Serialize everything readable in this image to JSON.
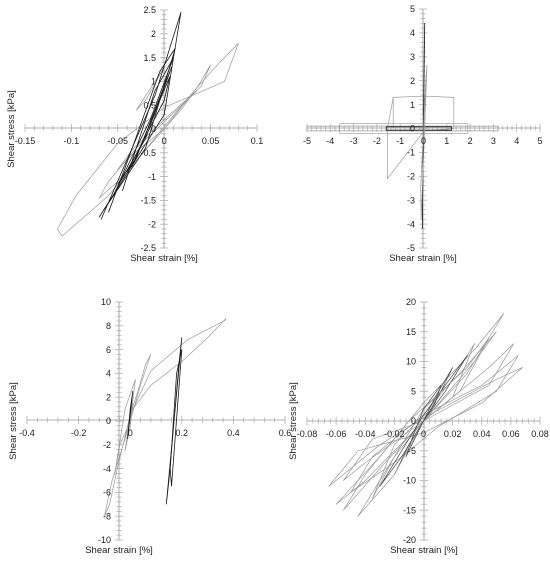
{
  "chart_data": [
    {
      "type": "line",
      "xlabel": "Shear strain [%]",
      "ylabel": "Shear stress [kPa]",
      "xlim": [
        -0.15,
        0.1
      ],
      "ylim": [
        -2.5,
        2.5
      ],
      "x_ticks": [
        "-0.15",
        "-0.1",
        "-0.05",
        "0",
        "0.05",
        "0.1"
      ],
      "y_ticks": [
        "-2.5",
        "-2",
        "-1.5",
        "-1",
        "-0.5",
        "0",
        "0.5",
        "1",
        "1.5",
        "2",
        "2.5"
      ],
      "grid": false,
      "series": [
        {
          "color": "#9a9a9a",
          "x": [
            0.0,
            0.03,
            0.055,
            0.08,
            0.065,
            0.0,
            -0.05,
            -0.095,
            -0.115,
            -0.11,
            -0.06,
            0.0
          ],
          "y": [
            0.05,
            0.75,
            1.3,
            1.8,
            1.0,
            0.45,
            -0.3,
            -1.4,
            -2.1,
            -2.25,
            -1.4,
            0.05
          ]
        },
        {
          "color": "#9a9a9a",
          "x": [
            0.0,
            0.02,
            0.038,
            0.05,
            0.04,
            0.0,
            -0.03,
            -0.06,
            -0.07,
            -0.05,
            0.0
          ],
          "y": [
            0.0,
            0.45,
            0.95,
            1.35,
            0.9,
            0.15,
            -0.4,
            -1.1,
            -1.45,
            -1.1,
            0.0
          ]
        },
        {
          "color": "#9a9a9a",
          "x": [
            0.0,
            0.02,
            0.035,
            0.02,
            0.0,
            -0.035,
            -0.05,
            -0.035,
            0.0
          ],
          "y": [
            0.0,
            0.5,
            0.8,
            0.55,
            0.2,
            -0.45,
            -0.85,
            -0.55,
            0.0
          ]
        },
        {
          "color": "#9a9a9a",
          "x": [
            -0.02,
            0.0,
            -0.01,
            -0.03,
            -0.02
          ],
          "y": [
            0.6,
            1.3,
            1.0,
            0.4,
            0.6
          ]
        },
        {
          "color": "#1a1a1a",
          "x": [
            -0.07,
            0.0,
            0.018,
            -0.01,
            -0.068
          ],
          "y": [
            -1.85,
            0.3,
            2.45,
            0.7,
            -1.9
          ]
        },
        {
          "color": "#1a1a1a",
          "x": [
            -0.065,
            -0.02,
            0.012,
            -0.005,
            -0.04,
            -0.06
          ],
          "y": [
            -1.7,
            -0.4,
            1.7,
            1.2,
            -0.7,
            -1.75
          ]
        },
        {
          "color": "#1a1a1a",
          "x": [
            -0.055,
            -0.015,
            0.01,
            -0.01,
            -0.045
          ],
          "y": [
            -1.4,
            0.2,
            1.5,
            0.8,
            -1.3
          ]
        },
        {
          "color": "#1a1a1a",
          "x": [
            -0.05,
            -0.02,
            0.008,
            0.0,
            -0.03,
            -0.05
          ],
          "y": [
            -1.2,
            -0.2,
            1.3,
            0.9,
            -0.6,
            -1.15
          ]
        },
        {
          "color": "#1a1a1a",
          "x": [
            -0.04,
            0.0,
            0.006,
            -0.035
          ],
          "y": [
            -0.9,
            0.6,
            1.1,
            -0.8
          ]
        }
      ]
    },
    {
      "type": "line",
      "xlabel": "Shear strain [%]",
      "ylabel": "",
      "xlim": [
        -5,
        5
      ],
      "ylim": [
        -5,
        5
      ],
      "x_ticks": [
        "-5",
        "-4",
        "-3",
        "-2",
        "-1",
        "0",
        "1",
        "2",
        "3",
        "4",
        "5"
      ],
      "y_ticks": [
        "-5",
        "-4",
        "-3",
        "-2",
        "-1",
        "0",
        "1",
        "2",
        "3",
        "4",
        "5"
      ],
      "grid": false,
      "series": [
        {
          "color": "#9a9a9a",
          "x": [
            0.0,
            0.05,
            1.3,
            1.3,
            0.05,
            -0.05,
            -1.55,
            -1.55,
            -1.3,
            0.0
          ],
          "y": [
            0.0,
            1.35,
            1.3,
            0.0,
            -0.1,
            -0.2,
            -2.1,
            0.0,
            1.3,
            1.35
          ]
        },
        {
          "color": "#9a9a9a",
          "x": [
            -1.3,
            -1.3
          ],
          "y": [
            1.3,
            0.0
          ]
        },
        {
          "color": "#9a9a9a",
          "x": [
            -5.0,
            3.2,
            3.2,
            -5.0,
            -5.0
          ],
          "y": [
            0.1,
            0.1,
            -0.1,
            -0.1,
            0.1
          ]
        },
        {
          "color": "#9a9a9a",
          "x": [
            -3.6,
            1.9,
            1.9,
            -3.6,
            -3.6
          ],
          "y": [
            0.2,
            0.2,
            -0.2,
            -0.2,
            0.2
          ]
        },
        {
          "color": "#1a1a1a",
          "x": [
            -1.6,
            1.2,
            1.2,
            -1.6,
            -1.6
          ],
          "y": [
            0.07,
            0.07,
            -0.07,
            -0.07,
            0.07
          ]
        },
        {
          "color": "#1a1a1a",
          "x": [
            -0.05,
            0.05,
            0.03,
            -0.04,
            -0.05
          ],
          "y": [
            -4.2,
            4.4,
            3.0,
            -3.0,
            -4.2
          ]
        },
        {
          "color": "#9a9a9a",
          "x": [
            -0.1,
            0.15,
            0.1,
            -0.12,
            -0.1
          ],
          "y": [
            -3.8,
            2.65,
            2.0,
            -2.5,
            -3.8
          ]
        }
      ]
    },
    {
      "type": "line",
      "xlabel": "Shear strain [%]",
      "ylabel": "Shear stress [kPa]",
      "xlim": [
        -0.4,
        0.6
      ],
      "ylim": [
        -10,
        10
      ],
      "x_ticks": [
        "-0.4",
        "-0.2",
        "0",
        "0.2",
        "0.4",
        "0.6"
      ],
      "y_ticks": [
        "-10",
        "-8",
        "-6",
        "-4",
        "-2",
        "0",
        "2",
        "4",
        "6",
        "8",
        "10"
      ],
      "grid": false,
      "series": [
        {
          "color": "#9a9a9a",
          "x": [
            0.0,
            0.08,
            0.22,
            0.37,
            0.37,
            0.3,
            0.2,
            0.08,
            0.01,
            0.0
          ],
          "y": [
            0.5,
            4.2,
            6.8,
            8.5,
            8.6,
            7.0,
            5.0,
            3.0,
            1.0,
            0.5
          ]
        },
        {
          "color": "#9a9a9a",
          "x": [
            0.0,
            0.03,
            0.06,
            0.08,
            0.04,
            -0.02,
            -0.07,
            -0.1,
            -0.08,
            -0.05,
            0.0
          ],
          "y": [
            0.5,
            2.5,
            4.8,
            5.6,
            3.0,
            -1.5,
            -5.0,
            -8.0,
            -7.0,
            -4.0,
            0.5
          ]
        },
        {
          "color": "#9a9a9a",
          "x": [
            0.0,
            0.02,
            -0.02,
            -0.06,
            -0.04,
            0.0
          ],
          "y": [
            0.0,
            3.5,
            1.0,
            -4.5,
            -2.0,
            0.0
          ]
        },
        {
          "color": "#9a9a9a",
          "x": [
            0.0,
            0.01,
            0.0,
            -0.02,
            -0.01,
            0.0
          ],
          "y": [
            -0.5,
            1.5,
            0.5,
            -2.5,
            -1.5,
            -0.5
          ]
        },
        {
          "color": "#1a1a1a",
          "x": [
            0.14,
            0.2,
            0.19,
            0.15,
            0.14
          ],
          "y": [
            -7.0,
            7.0,
            5.0,
            -5.0,
            -7.0
          ]
        },
        {
          "color": "#1a1a1a",
          "x": [
            0.16,
            0.2,
            0.18,
            0.155,
            0.16
          ],
          "y": [
            -5.5,
            6.0,
            4.0,
            -4.0,
            -5.5
          ]
        },
        {
          "color": "#1a1a1a",
          "x": [
            -0.01,
            0.01,
            0.0,
            -0.01
          ],
          "y": [
            -1.5,
            2.5,
            1.0,
            -1.5
          ]
        }
      ]
    },
    {
      "type": "line",
      "xlabel": "Shear strain [%]",
      "ylabel": "Shear stress [kPa]",
      "xlim": [
        -0.08,
        0.08
      ],
      "ylim": [
        -20,
        20
      ],
      "x_ticks": [
        "-0.08",
        "-0.06",
        "-0.04",
        "-0.02",
        "0",
        "0.02",
        "0.04",
        "0.06",
        "0.08"
      ],
      "y_ticks": [
        "-20",
        "-15",
        "-10",
        "-5",
        "0",
        "5",
        "10",
        "15",
        "20"
      ],
      "grid": false,
      "series": [
        {
          "color": "#9a9a9a",
          "x": [
            0.0,
            0.03,
            0.055,
            0.035,
            0.0,
            -0.03,
            -0.06,
            -0.04,
            0.0
          ],
          "y": [
            0.0,
            8.0,
            18.0,
            12.0,
            3.0,
            -6.0,
            -14.0,
            -10.0,
            0.0
          ]
        },
        {
          "color": "#9a9a9a",
          "x": [
            0.0,
            0.04,
            0.065,
            0.05,
            0.01,
            -0.02,
            -0.05,
            -0.035,
            0.0
          ],
          "y": [
            1.0,
            6.0,
            11.0,
            5.0,
            -1.0,
            -7.0,
            -12.0,
            -6.0,
            1.0
          ]
        },
        {
          "color": "#9a9a9a",
          "x": [
            0.0,
            0.025,
            0.045,
            0.03,
            -0.01,
            -0.04,
            -0.055,
            -0.03,
            0.0
          ],
          "y": [
            0.0,
            5.0,
            14.0,
            9.0,
            0.0,
            -9.0,
            -15.0,
            -8.0,
            0.0
          ]
        },
        {
          "color": "#9a9a9a",
          "x": [
            0.0,
            0.05,
            0.068,
            0.04,
            0.0,
            -0.045,
            -0.065,
            -0.03,
            0.0
          ],
          "y": [
            0.5,
            7.0,
            9.0,
            3.0,
            -2.0,
            -5.0,
            -11.0,
            -4.0,
            0.5
          ]
        },
        {
          "color": "#9a9a9a",
          "x": [
            0.0,
            0.02,
            0.035,
            0.02,
            0.0,
            -0.02,
            -0.035,
            -0.02,
            0.0
          ],
          "y": [
            0.0,
            4.0,
            13.0,
            7.0,
            1.0,
            -4.0,
            -13.0,
            -6.0,
            0.0
          ]
        },
        {
          "color": "#4a4a4a",
          "x": [
            0.0,
            0.015,
            0.03,
            0.015,
            0.0,
            -0.015,
            -0.03,
            -0.015,
            0.0
          ],
          "y": [
            0.0,
            5.0,
            11.0,
            6.0,
            1.0,
            -5.0,
            -11.0,
            -6.0,
            0.0
          ]
        },
        {
          "color": "#4a4a4a",
          "x": [
            0.0,
            0.01,
            0.02,
            0.008,
            0.0,
            -0.01,
            -0.02,
            -0.01,
            0.0
          ],
          "y": [
            0.0,
            4.0,
            9.0,
            4.0,
            0.0,
            -4.0,
            -9.0,
            -4.0,
            0.0
          ]
        },
        {
          "color": "#9a9a9a",
          "x": [
            0.0,
            0.035,
            0.05,
            0.025,
            0.0,
            -0.025,
            -0.045,
            -0.02,
            0.0
          ],
          "y": [
            0.0,
            10.0,
            15.0,
            8.0,
            2.0,
            -8.0,
            -16.0,
            -9.0,
            0.0
          ]
        },
        {
          "color": "#9a9a9a",
          "x": [
            0.0,
            0.045,
            0.062,
            0.045,
            0.0,
            -0.04,
            -0.055,
            -0.035,
            0.0
          ],
          "y": [
            0.0,
            9.0,
            13.0,
            6.0,
            0.0,
            -7.0,
            -10.0,
            -3.0,
            0.0
          ]
        },
        {
          "color": "#4a4a4a",
          "x": [
            0.0,
            0.008,
            0.012,
            0.0,
            -0.008,
            -0.012,
            0.0
          ],
          "y": [
            0.0,
            3.0,
            6.0,
            2.0,
            -3.0,
            -6.0,
            0.0
          ]
        }
      ]
    }
  ]
}
